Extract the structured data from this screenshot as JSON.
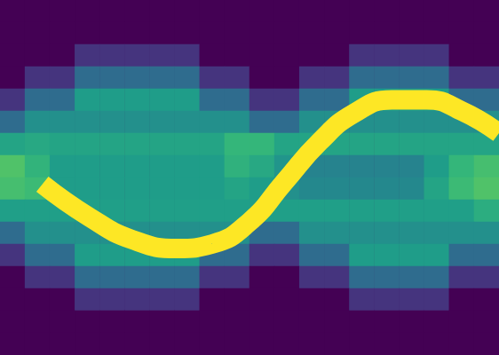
{
  "chart_data": {
    "type": "heatmap",
    "tick_labels": false,
    "xlim": [
      0,
      20
    ],
    "ylim": [
      0,
      16
    ],
    "color_range": [
      0,
      1
    ],
    "cells": [
      [
        0,
        0,
        0,
        0,
        0,
        0,
        0,
        0,
        0,
        0,
        0,
        0,
        0,
        0,
        0,
        0,
        0,
        0,
        0,
        0
      ],
      [
        0,
        0,
        0,
        0,
        0,
        0,
        0,
        0,
        0,
        0,
        0,
        0,
        0,
        0,
        0,
        0,
        0,
        0,
        0,
        0
      ],
      [
        0,
        0,
        0,
        0.15,
        0.15,
        0.15,
        0.15,
        0.15,
        0,
        0,
        0,
        0,
        0,
        0,
        0.15,
        0.15,
        0.15,
        0.15,
        0,
        0
      ],
      [
        0,
        0.15,
        0.15,
        0.35,
        0.35,
        0.35,
        0.35,
        0.35,
        0.15,
        0.15,
        0,
        0,
        0.15,
        0.15,
        0.35,
        0.35,
        0.35,
        0.35,
        0.15,
        0.15
      ],
      [
        0.15,
        0.35,
        0.35,
        0.55,
        0.55,
        0.55,
        0.55,
        0.55,
        0.35,
        0.35,
        0.15,
        0.15,
        0.35,
        0.35,
        0.55,
        0.55,
        0.55,
        0.55,
        0.35,
        0.35
      ],
      [
        0.35,
        0.5,
        0.5,
        0.5,
        0.5,
        0.5,
        0.5,
        0.5,
        0.5,
        0.5,
        0.35,
        0.35,
        0.5,
        0.5,
        0.5,
        0.5,
        0.5,
        0.5,
        0.5,
        0.5
      ],
      [
        0.58,
        0.6,
        0.58,
        0.58,
        0.58,
        0.58,
        0.58,
        0.58,
        0.58,
        0.66,
        0.66,
        0.58,
        0.58,
        0.58,
        0.58,
        0.58,
        0.58,
        0.58,
        0.58,
        0.58
      ],
      [
        0.72,
        0.65,
        0.55,
        0.55,
        0.55,
        0.55,
        0.55,
        0.55,
        0.55,
        0.64,
        0.6,
        0.52,
        0.45,
        0.45,
        0.45,
        0.45,
        0.45,
        0.55,
        0.66,
        0.7
      ],
      [
        0.7,
        0.68,
        0.55,
        0.55,
        0.55,
        0.55,
        0.55,
        0.55,
        0.55,
        0.58,
        0.55,
        0.5,
        0.47,
        0.47,
        0.47,
        0.47,
        0.47,
        0.58,
        0.68,
        0.72
      ],
      [
        0.56,
        0.56,
        0.56,
        0.56,
        0.56,
        0.56,
        0.56,
        0.56,
        0.56,
        0.56,
        0.56,
        0.56,
        0.56,
        0.56,
        0.56,
        0.56,
        0.56,
        0.56,
        0.56,
        0.62
      ],
      [
        0.35,
        0.5,
        0.5,
        0.5,
        0.5,
        0.5,
        0.5,
        0.5,
        0.5,
        0.5,
        0.35,
        0.35,
        0.5,
        0.5,
        0.5,
        0.5,
        0.5,
        0.5,
        0.5,
        0.5
      ],
      [
        0.15,
        0.35,
        0.35,
        0.55,
        0.55,
        0.55,
        0.55,
        0.55,
        0.35,
        0.35,
        0.15,
        0.15,
        0.35,
        0.35,
        0.55,
        0.55,
        0.55,
        0.55,
        0.35,
        0.35
      ],
      [
        0,
        0.15,
        0.15,
        0.35,
        0.35,
        0.35,
        0.35,
        0.35,
        0.15,
        0.15,
        0,
        0,
        0.15,
        0.15,
        0.35,
        0.35,
        0.35,
        0.35,
        0.15,
        0.15
      ],
      [
        0,
        0,
        0,
        0.15,
        0.15,
        0.15,
        0.15,
        0.15,
        0,
        0,
        0,
        0,
        0,
        0,
        0.15,
        0.15,
        0.15,
        0.15,
        0,
        0
      ],
      [
        0,
        0,
        0,
        0,
        0,
        0,
        0,
        0,
        0,
        0,
        0,
        0,
        0,
        0,
        0,
        0,
        0,
        0,
        0,
        0
      ],
      [
        0,
        0,
        0,
        0,
        0,
        0,
        0,
        0,
        0,
        0,
        0,
        0,
        0,
        0,
        0,
        0,
        0,
        0,
        0,
        0
      ]
    ],
    "series": [
      {
        "type": "line",
        "color": "#fde725",
        "x": [
          1.7,
          3.6,
          5.3,
          7.1,
          8.5,
          10,
          11.4,
          12.8,
          14.2,
          15.7,
          17.1,
          18.5,
          20
        ],
        "values": [
          7.7,
          6.2,
          5.2,
          4.8,
          5.0,
          6.0,
          7.8,
          9.6,
          10.9,
          11.5,
          11.5,
          11.0,
          10.0
        ]
      }
    ]
  }
}
